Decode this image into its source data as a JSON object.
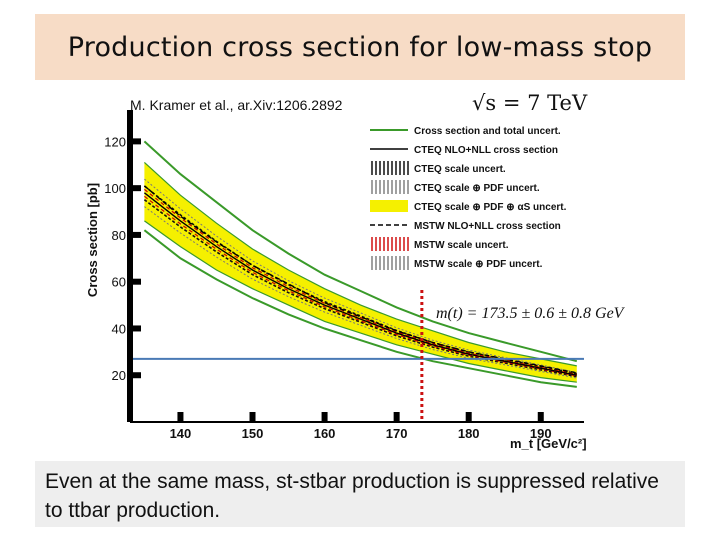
{
  "slide": {
    "title": "Production cross section for low-mass stop",
    "citation": "M. Kramer et al., ar.Xiv:1206.2892",
    "energy": "√s = 7 TeV",
    "caption": "Even at the same mass, st-stbar production is suppressed relative to ttbar production."
  },
  "chart_data": {
    "type": "line",
    "ylabel": "Cross section [pb]",
    "xlabel": "m_t [GeV/c²]",
    "xlim": [
      133,
      196
    ],
    "ylim": [
      0,
      130
    ],
    "x_ticks": [
      140,
      150,
      160,
      170,
      180,
      190
    ],
    "y_ticks": [
      20,
      40,
      60,
      80,
      100,
      120
    ],
    "legend_position": "top-right",
    "legend": [
      {
        "label": "Cross section and total uncert.",
        "style": "green-line"
      },
      {
        "label": "CTEQ NLO+NLL cross section",
        "style": "black-line"
      },
      {
        "label": "CTEQ scale uncert.",
        "style": "black-hatch"
      },
      {
        "label": "CTEQ scale ⊕ PDF uncert.",
        "style": "gray-hatch"
      },
      {
        "label": "CTEQ scale ⊕ PDF ⊕ αS uncert.",
        "style": "yellow-band"
      },
      {
        "label": "MSTW NLO+NLL cross section",
        "style": "black-dashed"
      },
      {
        "label": "MSTW scale uncert.",
        "style": "red-hatch"
      },
      {
        "label": "MSTW scale ⊕ PDF uncert.",
        "style": "gray-hatch-light"
      }
    ],
    "annotation": "m(t) = 173.5 ± 0.6 ± 0.8 GeV",
    "vertical_marker_x": 173.5,
    "horizontal_line_y": 27,
    "x": [
      135,
      140,
      145,
      150,
      155,
      160,
      165,
      170,
      175,
      180,
      185,
      190,
      195
    ],
    "series": [
      {
        "name": "Cross section and total uncert.",
        "band": "upper",
        "color": "#3a9a2a",
        "values": [
          120,
          106,
          94,
          82,
          72,
          63,
          56,
          49,
          43,
          38,
          34,
          30,
          26
        ]
      },
      {
        "name": "CTEQ scale ⊕ PDF ⊕ αS uncert.",
        "band": "upper",
        "color": "#f5f000",
        "values": [
          111,
          97,
          85,
          74,
          65,
          57,
          50,
          44,
          39,
          34,
          30,
          27,
          24
        ]
      },
      {
        "name": "CTEQ NLO+NLL cross section",
        "color": "#000000",
        "values": [
          98,
          86,
          75,
          65,
          57,
          50,
          44,
          38,
          33,
          29,
          26,
          23,
          20
        ]
      },
      {
        "name": "MSTW NLO+NLL cross section",
        "color": "#000000",
        "values": [
          101,
          88,
          77,
          67,
          59,
          51,
          45,
          39,
          34,
          30,
          27,
          24,
          21
        ]
      },
      {
        "name": "CTEQ scale ⊕ PDF ⊕ αS uncert.",
        "band": "lower",
        "color": "#f5f000",
        "values": [
          86,
          75,
          65,
          57,
          50,
          43,
          38,
          33,
          29,
          25,
          22,
          19,
          17
        ]
      },
      {
        "name": "Cross section and total uncert.",
        "band": "lower",
        "color": "#3a9a2a",
        "values": [
          82,
          70,
          61,
          53,
          46,
          40,
          35,
          30,
          26,
          23,
          20,
          17,
          15
        ]
      }
    ]
  }
}
